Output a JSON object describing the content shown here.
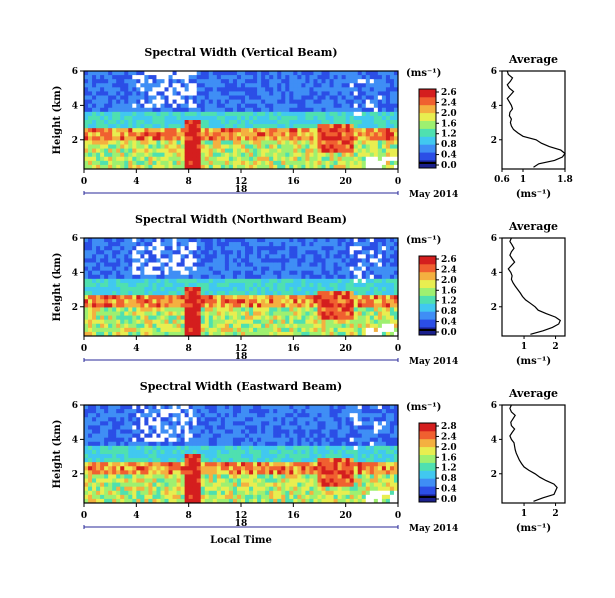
{
  "chart_data": [
    {
      "type": "heatmap",
      "title": "Spectral Width (Vertical Beam)",
      "ylabel": "Height (km)",
      "yticks": [
        "6",
        "4",
        "2"
      ],
      "xticks": [
        "0",
        "4",
        "8",
        "12",
        "16",
        "20",
        "0"
      ],
      "date_label": "18",
      "month_label": "May 2014",
      "colorbar": {
        "unit": "(ms⁻¹)",
        "ticks": [
          "2.6",
          "2.4",
          "2.0",
          "1.6",
          "1.2",
          "0.8",
          "0.4",
          "0.0"
        ]
      },
      "average": {
        "title": "Average",
        "xlabel": "(ms⁻¹)",
        "xticks": [
          "0.6",
          "1",
          "1.8"
        ],
        "yticks": [
          "6",
          "4",
          "2"
        ],
        "xlim": [
          0.6,
          1.8
        ],
        "ylim": [
          0.3,
          6.0
        ],
        "height": [
          0.4,
          0.6,
          0.8,
          1.0,
          1.2,
          1.4,
          1.6,
          1.8,
          2.0,
          2.2,
          2.4,
          2.6,
          2.8,
          3.0,
          3.2,
          3.4,
          3.6,
          3.8,
          4.0,
          4.2,
          4.4,
          4.6,
          4.8,
          5.0,
          5.2,
          5.4,
          5.6,
          5.8,
          6.0
        ],
        "width": [
          1.2,
          1.3,
          1.6,
          1.75,
          1.8,
          1.72,
          1.5,
          1.35,
          1.25,
          1.0,
          0.9,
          0.82,
          0.78,
          0.76,
          0.78,
          0.74,
          0.75,
          0.8,
          0.78,
          0.74,
          0.7,
          0.76,
          0.82,
          0.74,
          0.7,
          0.76,
          0.8,
          0.72,
          0.7
        ]
      }
    },
    {
      "type": "heatmap",
      "title": "Spectral Width (Northward Beam)",
      "ylabel": "Height (km)",
      "yticks": [
        "6",
        "4",
        "2"
      ],
      "xticks": [
        "0",
        "4",
        "8",
        "12",
        "16",
        "20",
        "0"
      ],
      "date_label": "18",
      "month_label": "May 2014",
      "colorbar": {
        "unit": "(ms⁻¹)",
        "ticks": [
          "2.6",
          "2.4",
          "2.0",
          "1.6",
          "1.2",
          "0.8",
          "0.4",
          "0.0"
        ]
      },
      "average": {
        "title": "Average",
        "xlabel": "(ms⁻¹)",
        "xticks": [
          "1",
          "2"
        ],
        "yticks": [
          "6",
          "4",
          "2"
        ],
        "xlim": [
          0.3,
          2.3
        ],
        "ylim": [
          0.3,
          6.0
        ],
        "height": [
          0.4,
          0.6,
          0.8,
          1.0,
          1.2,
          1.4,
          1.6,
          1.8,
          2.0,
          2.2,
          2.4,
          2.6,
          2.8,
          3.0,
          3.2,
          3.4,
          3.6,
          3.8,
          4.0,
          4.2,
          4.4,
          4.6,
          4.8,
          5.0,
          5.2,
          5.4,
          5.6,
          5.8,
          6.0
        ],
        "width": [
          1.2,
          1.6,
          1.9,
          2.1,
          2.15,
          2.0,
          1.7,
          1.45,
          1.35,
          1.2,
          1.05,
          0.95,
          0.88,
          0.8,
          0.72,
          0.65,
          0.6,
          0.62,
          0.58,
          0.5,
          0.6,
          0.7,
          0.62,
          0.55,
          0.6,
          0.68,
          0.62,
          0.55,
          0.6
        ]
      }
    },
    {
      "type": "heatmap",
      "title": "Spectral Width (Eastward Beam)",
      "ylabel": "Height (km)",
      "yticks": [
        "6",
        "4",
        "2"
      ],
      "xticks": [
        "0",
        "4",
        "8",
        "12",
        "16",
        "20",
        "0"
      ],
      "date_label": "18",
      "month_label": "May 2014",
      "xlabel": "Local Time",
      "colorbar": {
        "unit": "(ms⁻¹)",
        "ticks": [
          "2.8",
          "2.4",
          "2.0",
          "1.6",
          "1.2",
          "0.8",
          "0.4",
          "0.0"
        ]
      },
      "average": {
        "title": "Average",
        "xlabel": "(ms⁻¹)",
        "xticks": [
          "1",
          "2"
        ],
        "yticks": [
          "6",
          "4",
          "2"
        ],
        "xlim": [
          0.3,
          2.3
        ],
        "ylim": [
          0.3,
          6.0
        ],
        "height": [
          0.4,
          0.6,
          0.8,
          1.0,
          1.2,
          1.4,
          1.6,
          1.8,
          2.0,
          2.2,
          2.4,
          2.6,
          2.8,
          3.0,
          3.2,
          3.4,
          3.6,
          3.8,
          4.0,
          4.2,
          4.4,
          4.6,
          4.8,
          5.0,
          5.2,
          5.4,
          5.6,
          5.8,
          6.0
        ],
        "width": [
          1.3,
          1.6,
          1.95,
          2.0,
          2.05,
          1.95,
          1.7,
          1.5,
          1.35,
          1.15,
          1.0,
          0.92,
          0.85,
          0.8,
          0.75,
          0.72,
          0.7,
          0.68,
          0.6,
          0.55,
          0.62,
          0.7,
          0.6,
          0.58,
          0.65,
          0.72,
          0.6,
          0.55,
          0.6
        ]
      }
    }
  ],
  "colors": {
    "colormap": [
      "#1a1f8c",
      "#2b4ee6",
      "#3f8ef5",
      "#41c8f0",
      "#4fe0b0",
      "#9ef070",
      "#e8ee50",
      "#f4b040",
      "#f06030",
      "#d41e1e"
    ]
  }
}
